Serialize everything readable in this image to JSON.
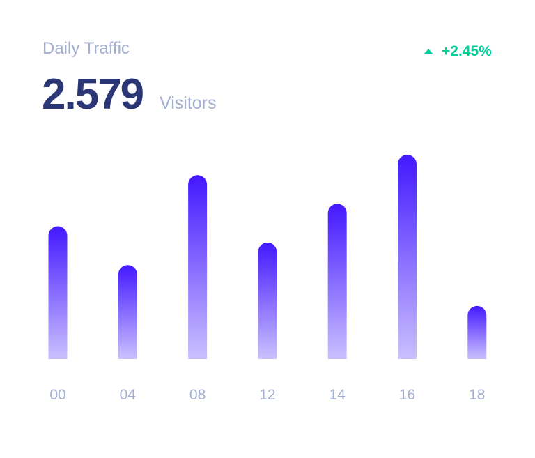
{
  "card": {
    "title": "Daily Traffic",
    "value": "2.579",
    "unit": "Visitors",
    "trend": "+2.45%",
    "trend_icon": "triangle-up-icon",
    "trend_color": "#05cd99"
  },
  "chart_data": {
    "type": "bar",
    "categories": [
      "00",
      "04",
      "08",
      "12",
      "14",
      "16",
      "18"
    ],
    "values": [
      65,
      46,
      90,
      57,
      76,
      100,
      26
    ],
    "ylim": [
      0,
      100
    ],
    "grid": false,
    "colors": {
      "top": "#4318ff",
      "bottom": "#cbc0ff",
      "tick": "#a3aed0"
    }
  }
}
